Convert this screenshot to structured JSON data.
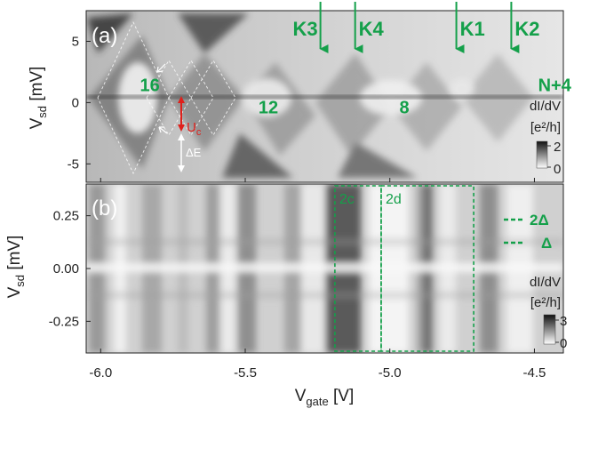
{
  "chart_data": [
    {
      "type": "heatmap",
      "panel_label": "(a)",
      "ylabel_main": "V",
      "ylabel_sub": "sd",
      "ylabel_unit": " [mV]",
      "ylim": [
        -6.5,
        7.5
      ],
      "yticks": [
        {
          "value": 5,
          "label": "5"
        },
        {
          "value": 0,
          "label": "0"
        },
        {
          "value": -5,
          "label": "-5"
        }
      ],
      "arrows": [
        {
          "label": "K3",
          "x": -5.24
        },
        {
          "label": "K4",
          "x": -5.12
        },
        {
          "label": "K1",
          "x": -4.77
        },
        {
          "label": "K2",
          "x": -4.58
        }
      ],
      "region_labels": [
        {
          "label": "16",
          "x": -5.83,
          "y": 1.5
        },
        {
          "label": "12",
          "x": -5.42,
          "y": -0.3
        },
        {
          "label": "8",
          "x": -4.95,
          "y": -0.3
        },
        {
          "label": "N+4",
          "x": -4.43,
          "y": 1.5
        }
      ],
      "annotations": {
        "uc_main": "U",
        "uc_sub": "c",
        "delta_e": "ΔE"
      },
      "colorbar": {
        "title": "dI/dV",
        "unit": "[e²/h]",
        "max_label": "2",
        "min_label": "0"
      }
    },
    {
      "type": "heatmap",
      "panel_label": "(b)",
      "ylabel_main": "V",
      "ylabel_sub": "sd",
      "ylabel_unit": " [mV]",
      "ylim": [
        -0.4,
        0.4
      ],
      "yticks": [
        {
          "value": 0.25,
          "label": "0.25"
        },
        {
          "value": 0.0,
          "label": "0.00"
        },
        {
          "value": -0.25,
          "label": "-0.25"
        }
      ],
      "boxes": [
        {
          "label": "2c",
          "x0": -5.19,
          "x1": -5.03
        },
        {
          "label": "2d",
          "x0": -5.03,
          "x1": -4.71
        }
      ],
      "legend": [
        {
          "label": "2Δ"
        },
        {
          "label": "Δ"
        }
      ],
      "colorbar": {
        "title": "dI/dV",
        "unit": "[e²/h]",
        "max_label": "3",
        "min_label": "0"
      }
    }
  ],
  "x_axis": {
    "label_main": "V",
    "label_sub": "gate",
    "label_unit": " [V]",
    "xlim": [
      -6.05,
      -4.4
    ],
    "ticks": [
      {
        "value": -6.0,
        "label": "-6.0"
      },
      {
        "value": -5.5,
        "label": "-5.5"
      },
      {
        "value": -5.0,
        "label": "-5.0"
      },
      {
        "value": -4.5,
        "label": "-4.5"
      }
    ]
  },
  "colors": {
    "accent": "#14a04a",
    "highlight": "#e0201b"
  }
}
